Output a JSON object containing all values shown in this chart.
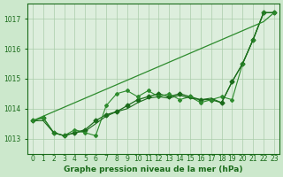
{
  "background_color": "#cce8cc",
  "plot_bg_color": "#ddeedd",
  "grid_color": "#aaccaa",
  "line_color_main": "#1a6b1a",
  "line_color_light": "#2d8b2d",
  "title": "Graphe pression niveau de la mer (hPa)",
  "x_labels": [
    "0",
    "1",
    "2",
    "3",
    "4",
    "5",
    "6",
    "7",
    "8",
    "9",
    "10",
    "11",
    "12",
    "13",
    "14",
    "15",
    "16",
    "17",
    "18",
    "19",
    "20",
    "21",
    "22",
    "23"
  ],
  "ylim": [
    1012.5,
    1017.5
  ],
  "yticks": [
    1013,
    1014,
    1015,
    1016,
    1017
  ],
  "series1": [
    1013.6,
    1013.7,
    1013.2,
    1013.1,
    1013.2,
    1013.3,
    1013.6,
    1013.8,
    1013.9,
    1014.1,
    1014.3,
    1014.4,
    1014.5,
    1014.4,
    1014.5,
    1014.4,
    1014.3,
    1014.3,
    1014.2,
    1014.9,
    1015.5,
    1016.3,
    1017.2,
    1017.2
  ],
  "series2": [
    1013.6,
    1013.7,
    1013.2,
    1013.1,
    1013.3,
    1013.2,
    1013.1,
    1014.1,
    1014.5,
    1014.6,
    1014.4,
    1014.6,
    1014.4,
    1014.5,
    1014.3,
    1014.4,
    1014.2,
    1014.3,
    1014.4,
    1014.3,
    1015.5,
    1016.3,
    1017.2,
    1017.2
  ],
  "series3": [
    1013.6,
    1013.6,
    1013.2,
    1013.1,
    1013.2,
    1013.25,
    1013.5,
    1013.75,
    1013.9,
    1014.0,
    1014.2,
    1014.35,
    1014.4,
    1014.35,
    1014.45,
    1014.35,
    1014.3,
    1014.35,
    1014.2,
    1014.9,
    1015.5,
    1016.3,
    1017.2,
    1017.2
  ],
  "series_trend": [
    1013.6,
    1013.75,
    1013.9,
    1014.05,
    1014.2,
    1014.35,
    1014.5,
    1014.65,
    1014.8,
    1014.95,
    1015.1,
    1015.25,
    1015.4,
    1015.55,
    1015.7,
    1015.85,
    1016.0,
    1016.15,
    1016.3,
    1016.45,
    1016.6,
    1016.75,
    1016.9,
    1017.2
  ]
}
